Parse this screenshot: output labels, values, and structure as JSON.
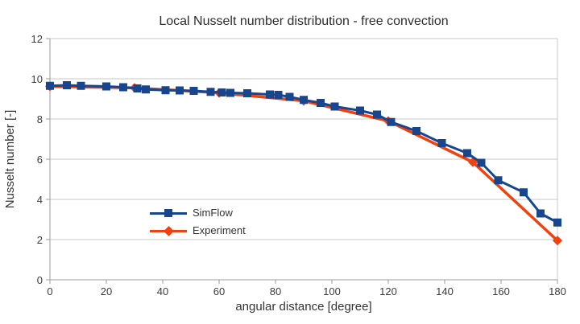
{
  "chart_data": {
    "type": "line",
    "title": "Local Nusselt number distribution - free convection",
    "xlabel": "angular distance [degree]",
    "ylabel": "Nusselt number [-]",
    "xlim": [
      0,
      180
    ],
    "ylim": [
      0,
      12
    ],
    "xticks": [
      0,
      20,
      40,
      60,
      80,
      100,
      120,
      140,
      160,
      180
    ],
    "yticks": [
      0,
      2,
      4,
      6,
      8,
      10,
      12
    ],
    "grid": "horizontal-only",
    "legend_position": "inside-lower-left",
    "series": [
      {
        "name": "SimFlow",
        "color": "#17468e",
        "marker": "square",
        "x": [
          0,
          6,
          11,
          20,
          26,
          31,
          34,
          41,
          46,
          51,
          57,
          61,
          64,
          70,
          78,
          81,
          85,
          90,
          96,
          101,
          110,
          116,
          121,
          130,
          139,
          148,
          153,
          159,
          168,
          174,
          180
        ],
        "y": [
          9.65,
          9.68,
          9.65,
          9.62,
          9.58,
          9.52,
          9.47,
          9.43,
          9.42,
          9.4,
          9.35,
          9.32,
          9.3,
          9.28,
          9.22,
          9.2,
          9.1,
          8.95,
          8.8,
          8.62,
          8.42,
          8.22,
          7.85,
          7.4,
          6.8,
          6.3,
          5.82,
          4.95,
          4.35,
          3.3,
          2.85
        ]
      },
      {
        "name": "Experiment",
        "color": "#f2400f",
        "marker": "diamond",
        "x": [
          0,
          30,
          60,
          90,
          120,
          150,
          180
        ],
        "y": [
          9.62,
          9.55,
          9.3,
          8.9,
          7.9,
          5.85,
          1.95
        ]
      }
    ]
  },
  "colors": {
    "gridline": "#c9c9c9",
    "axis": "#9b9b9b",
    "background": "#ffffff"
  }
}
